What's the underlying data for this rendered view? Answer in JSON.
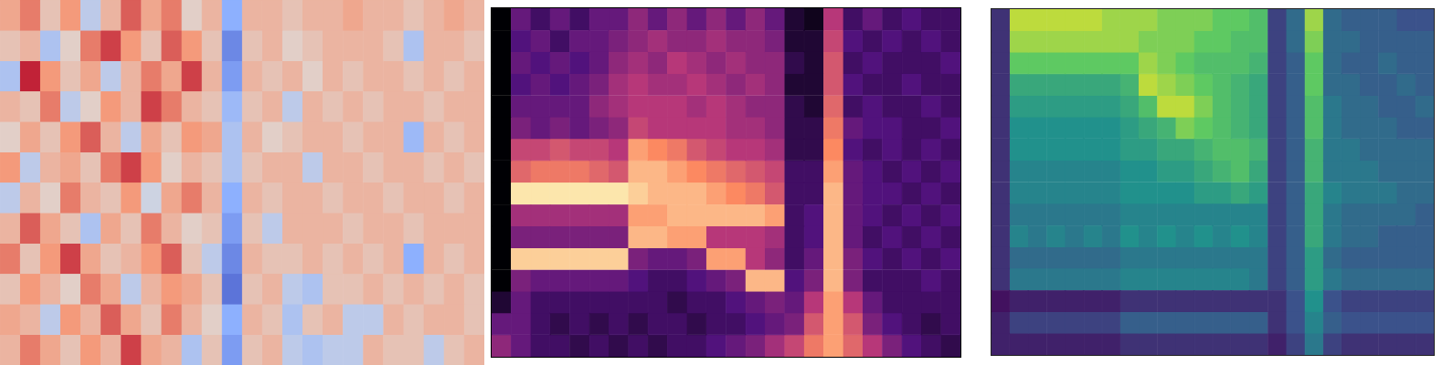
{
  "chart_data": [
    {
      "type": "heatmap",
      "color": "coolwarm",
      "tick_labels": false,
      "grid": false,
      "zlim": [
        -1,
        1
      ],
      "cells": [
        [
          0.4,
          0.6,
          0.2,
          0.5,
          -0.2,
          0.3,
          0.7,
          0.4,
          0.6,
          0.1,
          0.3,
          -0.5,
          0.3,
          0.3,
          0.2,
          0.3,
          0.3,
          0.4,
          0.3,
          0.3,
          0.2,
          0.3,
          0.4,
          0.3
        ],
        [
          0.2,
          0.3,
          -0.3,
          0.1,
          0.6,
          0.8,
          0.5,
          0.2,
          0.7,
          0.5,
          0.2,
          -0.7,
          0.2,
          0.3,
          0.1,
          0.2,
          0.3,
          0.3,
          0.3,
          0.2,
          -0.3,
          0.3,
          0.3,
          0.2
        ],
        [
          -0.3,
          0.9,
          0.5,
          0.2,
          0.4,
          -0.2,
          0.3,
          0.6,
          0.4,
          0.8,
          0.3,
          -0.6,
          0.3,
          0.2,
          0.3,
          0.1,
          0.3,
          0.2,
          0.3,
          0.3,
          0.2,
          0.3,
          0.2,
          0.3
        ],
        [
          0.3,
          0.2,
          0.6,
          -0.2,
          0.1,
          0.5,
          0.3,
          0.8,
          0.6,
          0.3,
          0.2,
          -0.4,
          0.2,
          0.3,
          -0.2,
          0.3,
          0.2,
          0.3,
          0.2,
          0.3,
          0.3,
          0.2,
          0.3,
          0.3
        ],
        [
          0.1,
          0.4,
          0.2,
          0.5,
          0.7,
          0.3,
          -0.2,
          0.4,
          0.2,
          0.5,
          0.4,
          -0.3,
          0.3,
          0.1,
          0.2,
          0.3,
          0.3,
          0.2,
          0.3,
          0.3,
          -0.4,
          0.3,
          0.2,
          0.3
        ],
        [
          0.5,
          -0.2,
          0.3,
          0.4,
          0.2,
          0.6,
          0.8,
          0.5,
          0.1,
          0.3,
          0.2,
          -0.3,
          0.2,
          0.3,
          0.3,
          -0.2,
          0.3,
          0.3,
          0.2,
          0.3,
          0.3,
          0.2,
          0.3,
          0.2
        ],
        [
          -0.2,
          0.3,
          0.1,
          0.6,
          0.3,
          0.2,
          0.5,
          -0.1,
          0.4,
          0.6,
          0.3,
          -0.5,
          0.3,
          0.2,
          0.3,
          0.3,
          0.2,
          0.3,
          0.3,
          0.2,
          0.3,
          0.3,
          0.2,
          0.3
        ],
        [
          0.3,
          0.7,
          0.4,
          0.2,
          -0.3,
          0.4,
          0.2,
          0.6,
          0.3,
          0.1,
          0.2,
          -0.6,
          0.2,
          -0.2,
          0.3,
          0.3,
          0.3,
          0.2,
          0.3,
          0.3,
          0.2,
          0.3,
          0.3,
          0.3
        ],
        [
          0.6,
          0.2,
          0.5,
          0.8,
          0.4,
          0.2,
          0.3,
          0.5,
          0.7,
          0.2,
          -0.2,
          -0.7,
          0.3,
          0.2,
          0.2,
          0.3,
          0.2,
          0.3,
          0.2,
          0.3,
          -0.5,
          0.3,
          0.2,
          0.3
        ],
        [
          0.2,
          0.5,
          0.3,
          0.1,
          0.6,
          0.4,
          -0.2,
          0.3,
          0.5,
          0.4,
          0.2,
          -0.8,
          0.2,
          0.3,
          -0.2,
          -0.3,
          0.2,
          0.2,
          0.3,
          0.2,
          0.3,
          0.2,
          0.3,
          0.2
        ],
        [
          0.4,
          0.3,
          -0.2,
          0.5,
          0.3,
          0.7,
          0.4,
          0.2,
          0.6,
          0.3,
          0.1,
          -0.5,
          0.3,
          0.2,
          -0.3,
          0.2,
          0.3,
          -0.2,
          -0.2,
          0.3,
          0.2,
          0.3,
          0.3,
          0.2
        ],
        [
          0.3,
          0.6,
          0.4,
          0.2,
          0.5,
          0.3,
          0.8,
          0.4,
          0.3,
          -0.3,
          0.2,
          -0.6,
          0.2,
          0.3,
          -0.2,
          -0.3,
          -0.2,
          -0.2,
          0.3,
          0.2,
          0.2,
          -0.2,
          0.2,
          0.3
        ]
      ]
    },
    {
      "type": "heatmap",
      "color": "magma",
      "tick_labels": false,
      "grid": false,
      "zlim": [
        0,
        1
      ],
      "cells": [
        [
          0,
          0.3,
          0.2,
          0.3,
          0.2,
          0.3,
          0.3,
          0.4,
          0.3,
          0.4,
          0.3,
          0.4,
          0.3,
          0.4,
          0.3,
          0.1,
          0.05,
          0.5,
          0.2,
          0.3,
          0.2,
          0.25,
          0.2,
          0.2
        ],
        [
          0,
          0.25,
          0.3,
          0.2,
          0.3,
          0.3,
          0.35,
          0.4,
          0.45,
          0.4,
          0.4,
          0.45,
          0.4,
          0.4,
          0.35,
          0.1,
          0.1,
          0.55,
          0.25,
          0.2,
          0.25,
          0.2,
          0.25,
          0.2
        ],
        [
          0,
          0.3,
          0.25,
          0.3,
          0.25,
          0.3,
          0.4,
          0.45,
          0.4,
          0.5,
          0.45,
          0.4,
          0.45,
          0.4,
          0.4,
          0.15,
          0.1,
          0.6,
          0.2,
          0.25,
          0.2,
          0.2,
          0.2,
          0.25
        ],
        [
          0,
          0.25,
          0.3,
          0.25,
          0.3,
          0.35,
          0.45,
          0.5,
          0.45,
          0.45,
          0.5,
          0.45,
          0.4,
          0.45,
          0.4,
          0.1,
          0.1,
          0.6,
          0.25,
          0.2,
          0.2,
          0.25,
          0.2,
          0.2
        ],
        [
          0,
          0.3,
          0.3,
          0.3,
          0.3,
          0.4,
          0.45,
          0.5,
          0.5,
          0.5,
          0.45,
          0.5,
          0.45,
          0.4,
          0.4,
          0.15,
          0.1,
          0.65,
          0.2,
          0.25,
          0.2,
          0.2,
          0.25,
          0.2
        ],
        [
          0,
          0.35,
          0.3,
          0.35,
          0.3,
          0.35,
          0.4,
          0.55,
          0.5,
          0.5,
          0.5,
          0.5,
          0.45,
          0.45,
          0.4,
          0.15,
          0.15,
          0.7,
          0.3,
          0.25,
          0.25,
          0.2,
          0.2,
          0.25
        ],
        [
          0,
          0.55,
          0.55,
          0.6,
          0.55,
          0.55,
          0.5,
          0.8,
          0.75,
          0.7,
          0.6,
          0.55,
          0.5,
          0.5,
          0.45,
          0.15,
          0.15,
          0.75,
          0.25,
          0.2,
          0.25,
          0.2,
          0.25,
          0.2
        ],
        [
          0,
          0.65,
          0.7,
          0.7,
          0.7,
          0.65,
          0.6,
          0.85,
          0.85,
          0.8,
          0.75,
          0.7,
          0.65,
          0.6,
          0.55,
          0.2,
          0.2,
          0.8,
          0.3,
          0.25,
          0.2,
          0.25,
          0.2,
          0.25
        ],
        [
          0,
          0.95,
          0.95,
          0.95,
          0.95,
          0.95,
          0.95,
          0.9,
          0.85,
          0.85,
          0.85,
          0.8,
          0.75,
          0.7,
          0.6,
          0.2,
          0.2,
          0.85,
          0.3,
          0.25,
          0.25,
          0.2,
          0.25,
          0.2
        ],
        [
          0,
          0.45,
          0.45,
          0.45,
          0.45,
          0.45,
          0.45,
          0.8,
          0.8,
          0.85,
          0.85,
          0.85,
          0.85,
          0.85,
          0.8,
          0.2,
          0.25,
          0.85,
          0.3,
          0.25,
          0.2,
          0.25,
          0.2,
          0.25
        ],
        [
          0,
          0.35,
          0.35,
          0.35,
          0.35,
          0.35,
          0.35,
          0.85,
          0.85,
          0.8,
          0.8,
          0.5,
          0.5,
          0.5,
          0.45,
          0.2,
          0.25,
          0.85,
          0.3,
          0.2,
          0.25,
          0.2,
          0.25,
          0.2
        ],
        [
          0,
          0.9,
          0.9,
          0.9,
          0.9,
          0.9,
          0.9,
          0.35,
          0.3,
          0.3,
          0.35,
          0.8,
          0.8,
          0.5,
          0.4,
          0.2,
          0.3,
          0.85,
          0.35,
          0.25,
          0.2,
          0.25,
          0.2,
          0.25
        ],
        [
          0,
          0.35,
          0.3,
          0.3,
          0.3,
          0.3,
          0.3,
          0.25,
          0.2,
          0.2,
          0.25,
          0.3,
          0.35,
          0.85,
          0.85,
          0.25,
          0.35,
          0.85,
          0.35,
          0.2,
          0.2,
          0.2,
          0.25,
          0.2
        ],
        [
          0.1,
          0.3,
          0.2,
          0.2,
          0.2,
          0.2,
          0.2,
          0.2,
          0.2,
          0.15,
          0.2,
          0.2,
          0.25,
          0.3,
          0.35,
          0.3,
          0.5,
          0.8,
          0.5,
          0.3,
          0.2,
          0.2,
          0.2,
          0.2
        ],
        [
          0.3,
          0.3,
          0.2,
          0.15,
          0.2,
          0.15,
          0.2,
          0.15,
          0.2,
          0.2,
          0.15,
          0.2,
          0.2,
          0.25,
          0.3,
          0.35,
          0.6,
          0.8,
          0.6,
          0.35,
          0.25,
          0.2,
          0.15,
          0.2
        ],
        [
          0.4,
          0.3,
          0.2,
          0.2,
          0.15,
          0.2,
          0.15,
          0.2,
          0.15,
          0.2,
          0.2,
          0.25,
          0.3,
          0.35,
          0.45,
          0.55,
          0.7,
          0.8,
          0.65,
          0.5,
          0.35,
          0.25,
          0.2,
          0.15
        ]
      ]
    },
    {
      "type": "heatmap",
      "color": "viridis",
      "tick_labels": false,
      "grid": false,
      "zlim": [
        0,
        1
      ],
      "cells": [
        [
          0.15,
          0.9,
          0.9,
          0.9,
          0.9,
          0.9,
          0.85,
          0.85,
          0.85,
          0.8,
          0.8,
          0.8,
          0.75,
          0.75,
          0.7,
          0.2,
          0.35,
          0.85,
          0.35,
          0.3,
          0.3,
          0.3,
          0.25,
          0.25
        ],
        [
          0.15,
          0.85,
          0.85,
          0.85,
          0.85,
          0.85,
          0.85,
          0.85,
          0.8,
          0.8,
          0.8,
          0.75,
          0.75,
          0.7,
          0.7,
          0.2,
          0.35,
          0.8,
          0.35,
          0.35,
          0.3,
          0.3,
          0.3,
          0.3
        ],
        [
          0.15,
          0.75,
          0.75,
          0.75,
          0.75,
          0.75,
          0.75,
          0.75,
          0.85,
          0.8,
          0.75,
          0.7,
          0.7,
          0.7,
          0.65,
          0.2,
          0.3,
          0.75,
          0.35,
          0.3,
          0.3,
          0.35,
          0.3,
          0.3
        ],
        [
          0.15,
          0.6,
          0.6,
          0.6,
          0.6,
          0.6,
          0.6,
          0.65,
          0.9,
          0.85,
          0.8,
          0.75,
          0.7,
          0.65,
          0.6,
          0.2,
          0.3,
          0.75,
          0.35,
          0.35,
          0.3,
          0.3,
          0.35,
          0.3
        ],
        [
          0.15,
          0.55,
          0.55,
          0.55,
          0.55,
          0.55,
          0.55,
          0.6,
          0.7,
          0.9,
          0.9,
          0.8,
          0.7,
          0.65,
          0.6,
          0.2,
          0.3,
          0.7,
          0.4,
          0.35,
          0.35,
          0.3,
          0.3,
          0.35
        ],
        [
          0.15,
          0.5,
          0.5,
          0.5,
          0.5,
          0.5,
          0.5,
          0.55,
          0.6,
          0.65,
          0.8,
          0.75,
          0.7,
          0.65,
          0.6,
          0.2,
          0.3,
          0.7,
          0.4,
          0.35,
          0.35,
          0.35,
          0.3,
          0.3
        ],
        [
          0.15,
          0.5,
          0.5,
          0.5,
          0.5,
          0.5,
          0.5,
          0.55,
          0.55,
          0.6,
          0.6,
          0.65,
          0.7,
          0.7,
          0.65,
          0.2,
          0.3,
          0.65,
          0.4,
          0.4,
          0.35,
          0.35,
          0.35,
          0.35
        ],
        [
          0.15,
          0.45,
          0.45,
          0.45,
          0.45,
          0.45,
          0.45,
          0.5,
          0.5,
          0.55,
          0.55,
          0.6,
          0.65,
          0.7,
          0.6,
          0.2,
          0.3,
          0.65,
          0.4,
          0.4,
          0.4,
          0.35,
          0.35,
          0.35
        ],
        [
          0.15,
          0.45,
          0.45,
          0.45,
          0.45,
          0.45,
          0.45,
          0.5,
          0.5,
          0.5,
          0.5,
          0.55,
          0.55,
          0.6,
          0.55,
          0.2,
          0.3,
          0.6,
          0.45,
          0.4,
          0.4,
          0.4,
          0.35,
          0.35
        ],
        [
          0.15,
          0.4,
          0.4,
          0.4,
          0.4,
          0.4,
          0.4,
          0.45,
          0.45,
          0.45,
          0.45,
          0.45,
          0.45,
          0.45,
          0.45,
          0.2,
          0.3,
          0.6,
          0.4,
          0.35,
          0.35,
          0.35,
          0.35,
          0.3
        ],
        [
          0.15,
          0.45,
          0.4,
          0.45,
          0.4,
          0.45,
          0.4,
          0.5,
          0.45,
          0.5,
          0.45,
          0.5,
          0.45,
          0.5,
          0.45,
          0.2,
          0.3,
          0.6,
          0.4,
          0.35,
          0.35,
          0.3,
          0.3,
          0.3
        ],
        [
          0.15,
          0.35,
          0.35,
          0.35,
          0.35,
          0.35,
          0.35,
          0.4,
          0.4,
          0.4,
          0.4,
          0.4,
          0.4,
          0.4,
          0.4,
          0.2,
          0.3,
          0.55,
          0.35,
          0.3,
          0.3,
          0.3,
          0.3,
          0.3
        ],
        [
          0.15,
          0.4,
          0.4,
          0.4,
          0.4,
          0.4,
          0.4,
          0.45,
          0.45,
          0.45,
          0.45,
          0.45,
          0.45,
          0.45,
          0.4,
          0.2,
          0.3,
          0.55,
          0.4,
          0.35,
          0.35,
          0.35,
          0.35,
          0.35
        ],
        [
          0.05,
          0.1,
          0.1,
          0.1,
          0.1,
          0.1,
          0.1,
          0.15,
          0.15,
          0.15,
          0.15,
          0.15,
          0.15,
          0.15,
          0.15,
          0.15,
          0.25,
          0.5,
          0.25,
          0.2,
          0.2,
          0.2,
          0.2,
          0.2
        ],
        [
          0.1,
          0.2,
          0.2,
          0.2,
          0.2,
          0.2,
          0.2,
          0.3,
          0.3,
          0.3,
          0.3,
          0.3,
          0.3,
          0.3,
          0.3,
          0.15,
          0.25,
          0.45,
          0.3,
          0.25,
          0.25,
          0.25,
          0.25,
          0.25
        ],
        [
          0.1,
          0.1,
          0.1,
          0.1,
          0.1,
          0.1,
          0.1,
          0.15,
          0.15,
          0.15,
          0.15,
          0.15,
          0.15,
          0.15,
          0.15,
          0.1,
          0.2,
          0.4,
          0.2,
          0.15,
          0.15,
          0.15,
          0.15,
          0.15
        ]
      ]
    }
  ]
}
